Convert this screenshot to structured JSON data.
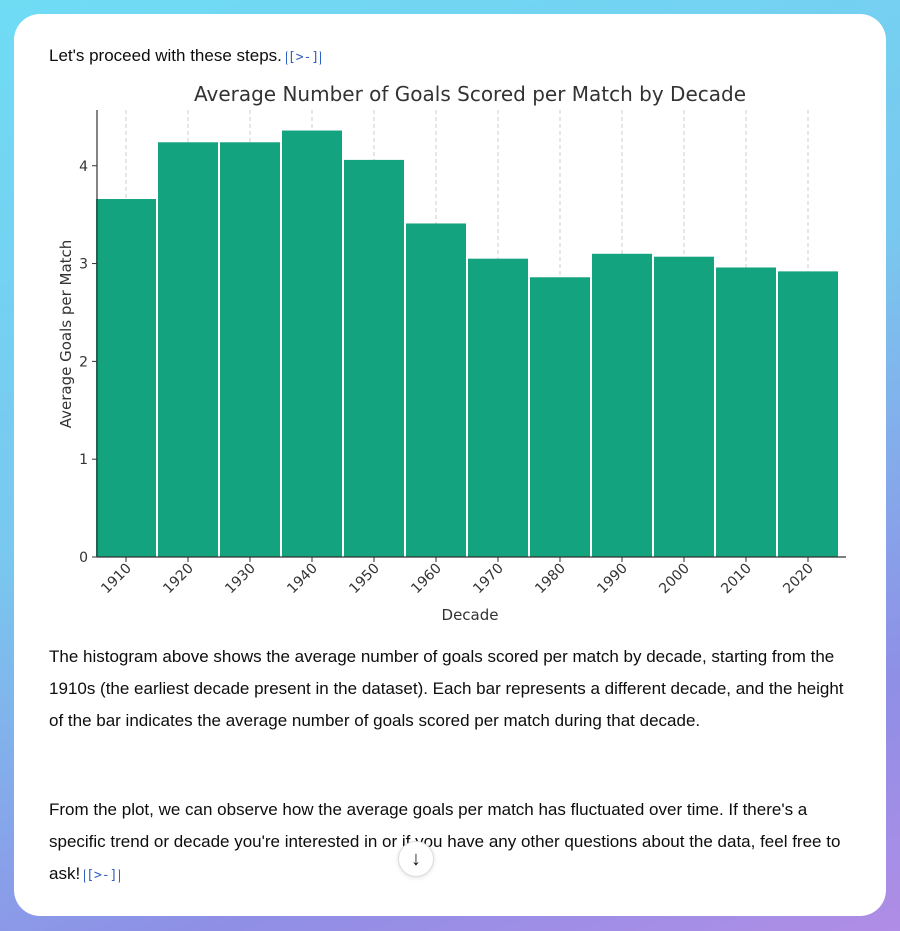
{
  "intro": "Let's proceed with these steps.",
  "cite_icon": "[>-]",
  "chart_data": {
    "type": "bar",
    "title": "Average Number of Goals Scored per Match by Decade",
    "xlabel": "Decade",
    "ylabel": "Average Goals per Match",
    "categories": [
      "1910",
      "1920",
      "1930",
      "1940",
      "1950",
      "1960",
      "1970",
      "1980",
      "1990",
      "2000",
      "2010",
      "2020"
    ],
    "values": [
      3.66,
      4.24,
      4.24,
      4.36,
      4.06,
      3.41,
      3.05,
      2.86,
      3.1,
      3.07,
      2.96,
      2.92
    ],
    "ylim": [
      0,
      4.57
    ],
    "yticks": [
      "0",
      "1",
      "2",
      "3",
      "4"
    ],
    "grid": "vertical dashed",
    "bar_color": "#13a37f"
  },
  "paragraph1": "The histogram above shows the average number of goals scored per match by decade, starting from the 1910s (the earliest decade present in the dataset). Each bar represents a different decade, and the height of the bar indicates the average number of goals scored per match during that decade.",
  "paragraph2": "From the plot, we can observe how the average goals per match has fluctuated over time. If there's a specific trend or decade you're interested in or if you have any other questions about the data, feel free to ask!",
  "scroll_icon": "↓"
}
